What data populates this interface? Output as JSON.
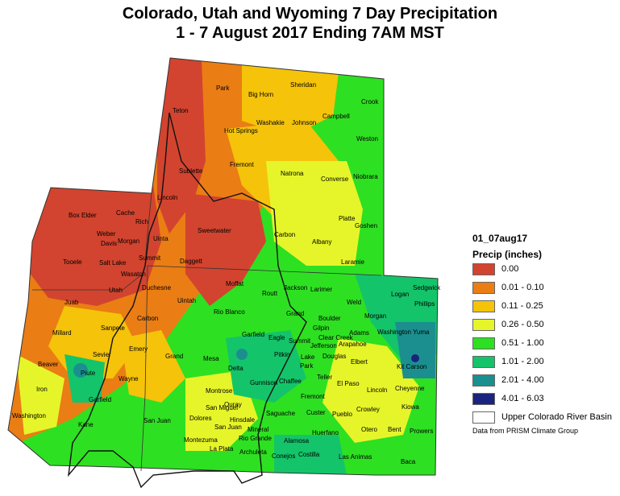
{
  "title_line1": "Colorado, Utah and Wyoming 7 Day Precipitation",
  "title_line2": "1 - 7 August 2017 Ending 7AM MST",
  "legend": {
    "date_label": "01_07aug17",
    "unit_label": "Precip (inches)",
    "items": [
      {
        "label": "0.00",
        "color": "#d2442f"
      },
      {
        "label": "0.01 - 0.10",
        "color": "#ea7d14"
      },
      {
        "label": "0.11 - 0.25",
        "color": "#f5c30a"
      },
      {
        "label": "0.26 - 0.50",
        "color": "#e6f52a"
      },
      {
        "label": "0.51 - 1.00",
        "color": "#2ee022"
      },
      {
        "label": "1.01 - 2.00",
        "color": "#14c46a"
      },
      {
        "label": "2.01 - 4.00",
        "color": "#1b8f8f"
      },
      {
        "label": "4.01 - 6.03",
        "color": "#1a237e"
      },
      {
        "label": "Upper Colorado River Basin",
        "color": "#ffffff"
      }
    ]
  },
  "credit": "Data from PRISM Climate Group",
  "counties": [
    "Park",
    "Sheridan",
    "Big Horn",
    "Crook",
    "Teton",
    "Washakie",
    "Johnson",
    "Campbell",
    "Hot Springs",
    "Weston",
    "Fremont",
    "Sublette",
    "Natrona",
    "Converse",
    "Niobrara",
    "Lincoln",
    "Platte",
    "Goshen",
    "Box Elder",
    "Cache",
    "Rich",
    "Weber",
    "Davis",
    "Morgan",
    "Uinta",
    "Sweetwater",
    "Carbon",
    "Albany",
    "Laramie",
    "Tooele",
    "Salt Lake",
    "Summit",
    "Daggett",
    "Wasatch",
    "Utah",
    "Duchesne",
    "Moffat",
    "Routt",
    "Jackson",
    "Larimer",
    "Weld",
    "Logan",
    "Sedgwick",
    "Phillips",
    "Juab",
    "Uintah",
    "Rio Blanco",
    "Grand",
    "Boulder",
    "Morgan",
    "Millard",
    "Sanpete",
    "Carbon",
    "Garfield",
    "Eagle",
    "Gilpin",
    "Clear Creek",
    "Jefferson",
    "Arapahoe",
    "Adams",
    "Washington",
    "Yuma",
    "Sevier",
    "Emery",
    "Grand",
    "Mesa",
    "Pitkin",
    "Summit",
    "Lake",
    "Park",
    "Douglas",
    "Elbert",
    "Kit Carson",
    "Beaver",
    "Piute",
    "Wayne",
    "Delta",
    "Gunnison",
    "Chaffee",
    "Teller",
    "El Paso",
    "Lincoln",
    "Cheyenne",
    "Iron",
    "Garfield",
    "Montrose",
    "Ouray",
    "Fremont",
    "Kiowa",
    "Washington",
    "San Miguel",
    "Hinsdale",
    "Saguache",
    "Custer",
    "Pueblo",
    "Crowley",
    "Kane",
    "San Juan",
    "Dolores",
    "San Juan",
    "Mineral",
    "Otero",
    "Bent",
    "Prowers",
    "Montezuma",
    "Rio Grande",
    "Alamosa",
    "Huerfano",
    "La Plata",
    "Archuleta",
    "Conejos",
    "Costilla",
    "Las Animas",
    "Baca"
  ]
}
